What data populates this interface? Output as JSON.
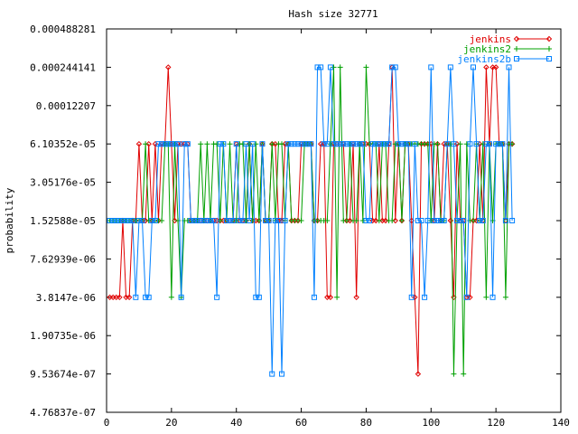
{
  "chart_data": {
    "type": "line",
    "title": "Hash size 32771",
    "xlabel": "",
    "ylabel": "probability",
    "xlim": [
      0,
      140
    ],
    "ylim_log2": [
      -21,
      -11
    ],
    "yscale": "log2",
    "legend_position": "top-right",
    "x_ticks": [
      "0",
      "20",
      "40",
      "60",
      "80",
      "100",
      "120",
      "140"
    ],
    "x_tick_values": [
      0,
      20,
      40,
      60,
      80,
      100,
      120,
      140
    ],
    "y_ticks": [
      "0.000488281",
      "0.000244141",
      "0.00012207",
      "6.10352e-05",
      "3.05176e-05",
      "1.52588e-05",
      "7.62939e-06",
      "3.8147e-06",
      "1.90735e-06",
      "9.53674e-07",
      "4.76837e-07"
    ],
    "y_tick_exponents": [
      -11,
      -12,
      -13,
      -14,
      -15,
      -16,
      -17,
      -18,
      -19,
      -20,
      -21
    ],
    "series": [
      {
        "name": "jenkins",
        "color": "#e00000",
        "marker": "diamond",
        "exponents": [
          -18,
          -18,
          -18,
          -18,
          -16,
          -18,
          -18,
          -16,
          -16,
          -14,
          -16,
          -16,
          -14,
          -16,
          -14,
          -16,
          -14,
          -14,
          -12,
          -14,
          -16,
          -14,
          -14,
          -14,
          -14,
          -16,
          -16,
          -16,
          -16,
          -16,
          -16,
          -16,
          -16,
          -16,
          -16,
          -16,
          -16,
          -16,
          -16,
          -14,
          -16,
          -16,
          -16,
          -14,
          -16,
          -16,
          -16,
          -14,
          -16,
          -16,
          -14,
          -14,
          -16,
          -16,
          -14,
          -14,
          -16,
          -16,
          -16,
          -14,
          -14,
          -14,
          -14,
          -16,
          -16,
          -14,
          -14,
          -18,
          -18,
          -14,
          -14,
          -14,
          -14,
          -16,
          -16,
          -14,
          -18,
          -14,
          -14,
          -14,
          -14,
          -16,
          -16,
          -14,
          -16,
          -16,
          -14,
          -12,
          -16,
          -14,
          -16,
          -14,
          -14,
          -16,
          -18,
          -20,
          -14,
          -14,
          -14,
          -14,
          -16,
          -14,
          -16,
          -14,
          -14,
          -16,
          -18,
          -14,
          -16,
          -16,
          -18,
          -18,
          -16,
          -16,
          -14,
          -16,
          -12,
          -14,
          -12,
          -12,
          -14,
          -14,
          -16,
          -14,
          -14
        ],
        "x_start": 1
      },
      {
        "name": "jenkins2",
        "color": "#00a000",
        "marker": "plus",
        "exponents": [
          -16,
          -16,
          -16,
          -16,
          -16,
          -16,
          -16,
          -16,
          -16,
          -16,
          -16,
          -14,
          -16,
          -16,
          -16,
          -16,
          -16,
          -14,
          -14,
          -18,
          -14,
          -16,
          -18,
          -16,
          -16,
          -16,
          -16,
          -16,
          -14,
          -16,
          -14,
          -16,
          -14,
          -14,
          -16,
          -14,
          -16,
          -14,
          -16,
          -16,
          -14,
          -14,
          -16,
          -14,
          -16,
          -14,
          -16,
          -14,
          -16,
          -16,
          -14,
          -16,
          -14,
          -14,
          -16,
          -14,
          -16,
          -16,
          -16,
          -16,
          -14,
          -14,
          -14,
          -16,
          -16,
          -16,
          -16,
          -16,
          -14,
          -12,
          -18,
          -12,
          -16,
          -16,
          -14,
          -16,
          -16,
          -14,
          -16,
          -12,
          -14,
          -14,
          -14,
          -16,
          -14,
          -14,
          -16,
          -16,
          -14,
          -14,
          -16,
          -14,
          -14,
          -14,
          -14,
          -14,
          -14,
          -14,
          -14,
          -16,
          -14,
          -14,
          -16,
          -16,
          -14,
          -14,
          -20,
          -16,
          -14,
          -20,
          -14,
          -16,
          -16,
          -14,
          -16,
          -14,
          -18,
          -14,
          -16,
          -14,
          -14,
          -14,
          -18,
          -14,
          -14
        ],
        "x_start": 1
      },
      {
        "name": "jenkins2b",
        "color": "#0080ff",
        "marker": "square",
        "exponents": [
          -16,
          -16,
          -16,
          -16,
          -16,
          -16,
          -16,
          -16,
          -18,
          -16,
          -16,
          -18,
          -18,
          -16,
          -16,
          -14,
          -14,
          -14,
          -14,
          -14,
          -14,
          -14,
          -18,
          -14,
          -14,
          -16,
          -16,
          -16,
          -16,
          -16,
          -16,
          -16,
          -16,
          -18,
          -14,
          -14,
          -16,
          -16,
          -16,
          -14,
          -16,
          -16,
          -14,
          -16,
          -14,
          -18,
          -18,
          -14,
          -16,
          -16,
          -20,
          -16,
          -16,
          -20,
          -16,
          -14,
          -14,
          -14,
          -14,
          -14,
          -14,
          -14,
          -14,
          -18,
          -12,
          -12,
          -14,
          -14,
          -12,
          -14,
          -14,
          -14,
          -14,
          -14,
          -14,
          -14,
          -14,
          -14,
          -14,
          -16,
          -16,
          -14,
          -14,
          -14,
          -14,
          -14,
          -14,
          -12,
          -12,
          -14,
          -14,
          -14,
          -14,
          -18,
          -14,
          -16,
          -16,
          -18,
          -16,
          -12,
          -16,
          -16,
          -16,
          -16,
          -14,
          -12,
          -14,
          -16,
          -16,
          -16,
          -18,
          -14,
          -12,
          -14,
          -16,
          -16,
          -14,
          -14,
          -18,
          -14,
          -14,
          -14,
          -16,
          -12,
          -16
        ],
        "x_start": 1
      }
    ]
  }
}
